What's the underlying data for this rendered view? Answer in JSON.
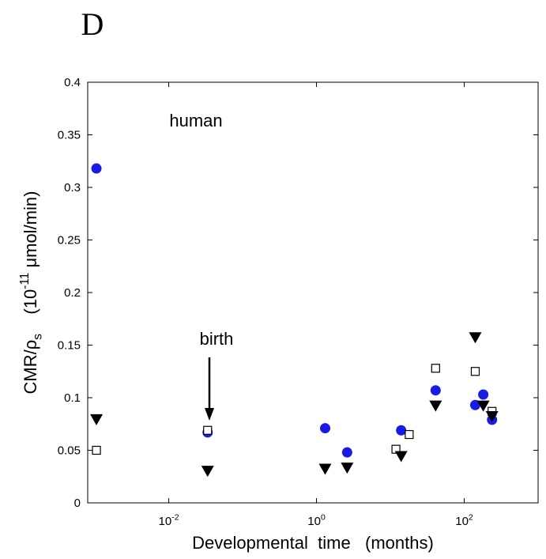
{
  "panel_label": "D",
  "chart_data": {
    "type": "scatter",
    "xlabel": "Developmental  time   (months)",
    "ylabel": "CMR/ρ_s    (10^-11 μmol/min)",
    "annotations": [
      {
        "text": "human"
      },
      {
        "text": "birth"
      }
    ],
    "xscale": "log",
    "xlim": [
      0.0008,
      1000
    ],
    "ylim": [
      0,
      0.4
    ],
    "xticks": [
      {
        "value": 0.01,
        "label": "10^-2"
      },
      {
        "value": 1,
        "label": "10^0"
      },
      {
        "value": 100,
        "label": "10^2"
      }
    ],
    "yticks": [
      0,
      0.05,
      0.1,
      0.15,
      0.2,
      0.25,
      0.3,
      0.35,
      0.4
    ],
    "grid": false,
    "series": [
      {
        "marker": "circle",
        "color": "#1a1ae6",
        "x": [
          0.00105,
          0.0336,
          1.31,
          2.6,
          14,
          41,
          141,
          181,
          238
        ],
        "values": [
          0.318,
          0.067,
          0.071,
          0.048,
          0.069,
          0.107,
          0.093,
          0.103,
          0.079
        ]
      },
      {
        "marker": "square",
        "color": "#000000",
        "x": [
          0.00105,
          0.0336,
          11.9,
          18,
          41,
          141,
          238
        ],
        "values": [
          0.05,
          0.069,
          0.051,
          0.065,
          0.128,
          0.125,
          0.087
        ]
      },
      {
        "marker": "triangle-down",
        "color": "#000000",
        "x": [
          0.00105,
          0.0336,
          1.31,
          2.6,
          14,
          41,
          141,
          181,
          238
        ],
        "values": [
          0.079,
          0.03,
          0.032,
          0.033,
          0.044,
          0.092,
          0.157,
          0.092,
          0.082
        ]
      }
    ]
  }
}
